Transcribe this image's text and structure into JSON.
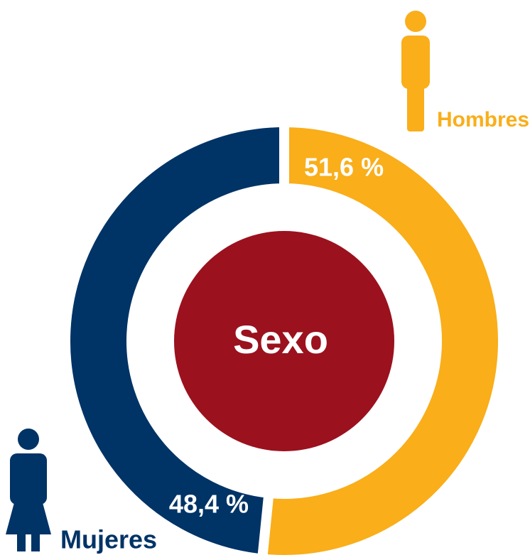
{
  "chart_data": {
    "type": "donut",
    "title": "Sexo",
    "categories": [
      "Hombres",
      "Mujeres"
    ],
    "values": [
      51.6,
      48.4
    ],
    "value_labels": [
      "51,6 %",
      "48,4 %"
    ],
    "colors": [
      "#f9ae1a",
      "#003366"
    ],
    "center_color": "#9b111e"
  }
}
